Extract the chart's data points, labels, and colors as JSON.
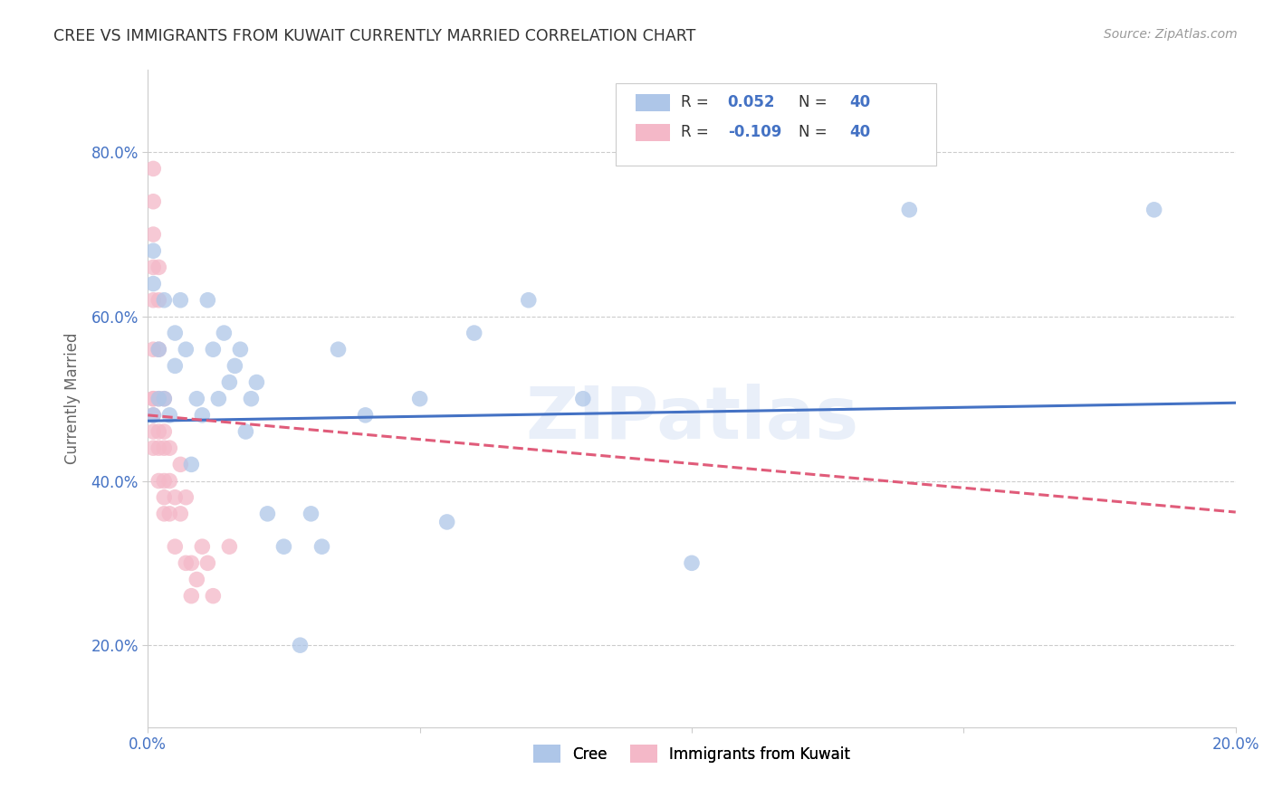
{
  "title": "CREE VS IMMIGRANTS FROM KUWAIT CURRENTLY MARRIED CORRELATION CHART",
  "source": "Source: ZipAtlas.com",
  "xlabel": "",
  "ylabel": "Currently Married",
  "xlim": [
    0.0,
    0.2
  ],
  "ylim": [
    0.1,
    0.9
  ],
  "xticks": [
    0.0,
    0.05,
    0.1,
    0.15,
    0.2
  ],
  "yticks": [
    0.2,
    0.4,
    0.6,
    0.8
  ],
  "xticklabels": [
    "0.0%",
    "",
    "",
    "",
    "20.0%"
  ],
  "yticklabels": [
    "20.0%",
    "40.0%",
    "60.0%",
    "80.0%"
  ],
  "cree_color": "#aec6e8",
  "kuwait_color": "#f4b8c8",
  "cree_line_color": "#4472c4",
  "kuwait_line_color": "#e05c7a",
  "watermark": "ZIPatlas",
  "cree_x": [
    0.001,
    0.001,
    0.001,
    0.002,
    0.002,
    0.003,
    0.003,
    0.004,
    0.005,
    0.005,
    0.006,
    0.007,
    0.008,
    0.009,
    0.01,
    0.011,
    0.012,
    0.013,
    0.014,
    0.015,
    0.016,
    0.017,
    0.018,
    0.019,
    0.02,
    0.022,
    0.025,
    0.028,
    0.03,
    0.032,
    0.035,
    0.04,
    0.05,
    0.055,
    0.06,
    0.07,
    0.08,
    0.1,
    0.14,
    0.185
  ],
  "cree_y": [
    0.48,
    0.68,
    0.64,
    0.5,
    0.56,
    0.5,
    0.62,
    0.48,
    0.54,
    0.58,
    0.62,
    0.56,
    0.42,
    0.5,
    0.48,
    0.62,
    0.56,
    0.5,
    0.58,
    0.52,
    0.54,
    0.56,
    0.46,
    0.5,
    0.52,
    0.36,
    0.32,
    0.2,
    0.36,
    0.32,
    0.56,
    0.48,
    0.5,
    0.35,
    0.58,
    0.62,
    0.5,
    0.3,
    0.73,
    0.73
  ],
  "kuwait_x": [
    0.001,
    0.001,
    0.001,
    0.001,
    0.001,
    0.001,
    0.001,
    0.001,
    0.001,
    0.001,
    0.001,
    0.002,
    0.002,
    0.002,
    0.002,
    0.002,
    0.002,
    0.002,
    0.003,
    0.003,
    0.003,
    0.003,
    0.003,
    0.003,
    0.004,
    0.004,
    0.004,
    0.005,
    0.005,
    0.006,
    0.006,
    0.007,
    0.007,
    0.008,
    0.008,
    0.009,
    0.01,
    0.011,
    0.012,
    0.015
  ],
  "kuwait_y": [
    0.78,
    0.74,
    0.7,
    0.66,
    0.62,
    0.56,
    0.5,
    0.5,
    0.48,
    0.46,
    0.44,
    0.66,
    0.62,
    0.56,
    0.5,
    0.46,
    0.44,
    0.4,
    0.5,
    0.46,
    0.44,
    0.4,
    0.38,
    0.36,
    0.44,
    0.4,
    0.36,
    0.38,
    0.32,
    0.42,
    0.36,
    0.38,
    0.3,
    0.3,
    0.26,
    0.28,
    0.32,
    0.3,
    0.26,
    0.32
  ],
  "cree_line_x0": 0.0,
  "cree_line_y0": 0.473,
  "cree_line_x1": 0.2,
  "cree_line_y1": 0.495,
  "kuwait_line_x0": 0.0,
  "kuwait_line_y0": 0.48,
  "kuwait_line_x1": 0.2,
  "kuwait_line_y1": 0.362
}
